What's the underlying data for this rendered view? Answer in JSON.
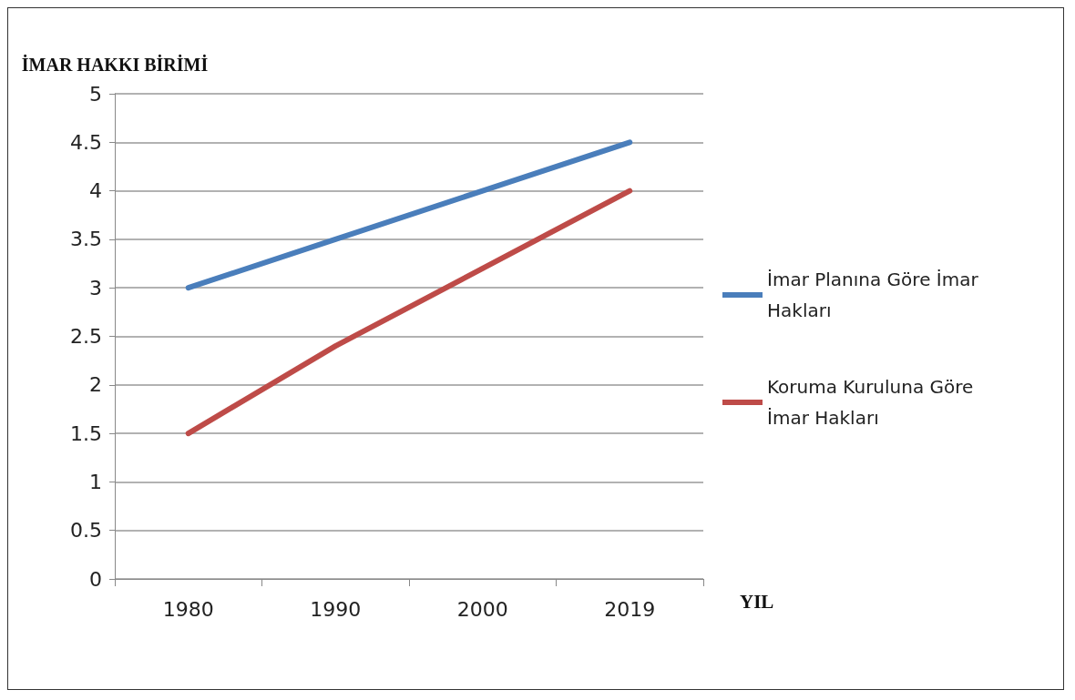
{
  "chart_data": {
    "type": "line",
    "ylabel": "İMAR HAKKI BİRİMİ",
    "xlabel": "YIL",
    "categories": [
      "1980",
      "1990",
      "2000",
      "2019"
    ],
    "series": [
      {
        "name": "İmar Planına Göre İmar Hakları",
        "color": "#4a7ebb",
        "values": [
          3,
          3.5,
          4,
          4.5
        ]
      },
      {
        "name": "Koruma Kuruluna Göre İmar Hakları",
        "color": "#be4b48",
        "values": [
          1.5,
          2.4,
          3.2,
          4
        ]
      }
    ],
    "ylim": [
      0,
      5
    ],
    "yticks": [
      0,
      0.5,
      1,
      1.5,
      2,
      2.5,
      3,
      3.5,
      4,
      4.5,
      5
    ],
    "grid": "y",
    "legend": "right",
    "marker": "none",
    "line_style": "solid"
  }
}
